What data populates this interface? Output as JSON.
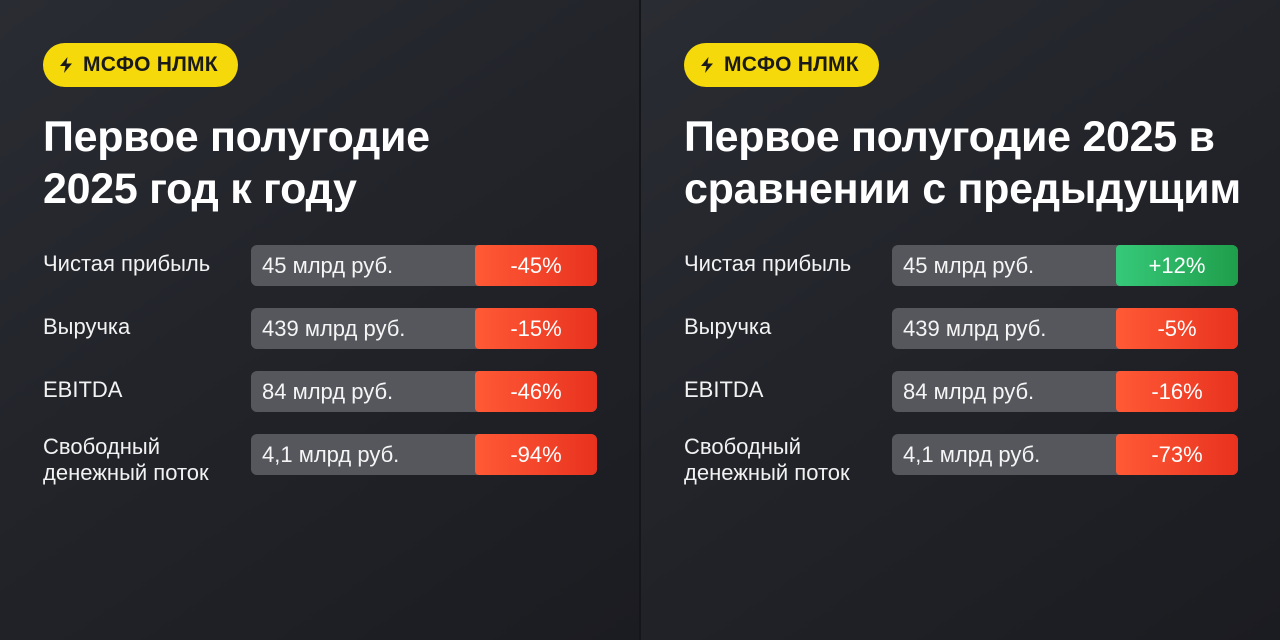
{
  "panels": [
    {
      "badge": "МСФО НЛМК",
      "title_line1": "Первое полугодие",
      "title_line2": "2025 год к году",
      "rows": [
        {
          "label": "Чистая прибыль",
          "value": "45 млрд руб.",
          "change": "-45%",
          "trend": "neg"
        },
        {
          "label": "Выручка",
          "value": "439 млрд руб.",
          "change": "-15%",
          "trend": "neg"
        },
        {
          "label": "EBITDA",
          "value": "84 млрд руб.",
          "change": "-46%",
          "trend": "neg"
        },
        {
          "label_line1": "Свободный",
          "label_line2": "денежный поток",
          "value": "4,1 млрд руб.",
          "change": "-94%",
          "trend": "neg"
        }
      ]
    },
    {
      "badge": "МСФО НЛМК",
      "title_line1": "Первое полугодие 2025 в",
      "title_line2": "сравнении с предыдущим",
      "rows": [
        {
          "label": "Чистая прибыль",
          "value": "45 млрд руб.",
          "change": "+12%",
          "trend": "pos"
        },
        {
          "label": "Выручка",
          "value": "439 млрд руб.",
          "change": "-5%",
          "trend": "neg"
        },
        {
          "label": "EBITDA",
          "value": "84 млрд руб.",
          "change": "-16%",
          "trend": "neg"
        },
        {
          "label_line1": "Свободный",
          "label_line2": "денежный поток",
          "value": "4,1 млрд руб.",
          "change": "-73%",
          "trend": "neg"
        }
      ]
    }
  ],
  "colors": {
    "badge_bg": "#f5d90a",
    "negative": "#e8321f",
    "positive": "#1f9e4a",
    "bar_bg": "#55575d"
  },
  "icons": {
    "badge_icon": "lightning-icon"
  }
}
